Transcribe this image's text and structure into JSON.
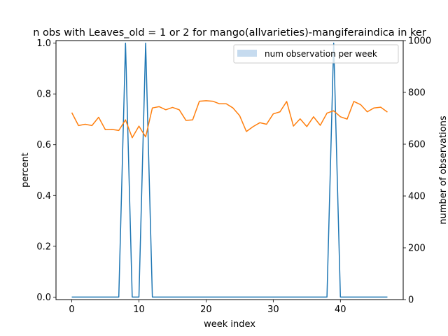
{
  "chart_data": {
    "type": "line",
    "title": "n obs with Leaves_old = 1 or 2 for mango(allvarieties)-mangiferaindica in ker",
    "xlabel": "week index",
    "ylabel": "percent",
    "ylabel_right": "number of observations",
    "xlim": [
      -2.35,
      49.35
    ],
    "ylim": [
      -0.01,
      1.01
    ],
    "ylim_right": [
      0,
      1000
    ],
    "x_ticks": [
      0,
      10,
      20,
      30,
      40
    ],
    "y_ticks": [
      0.0,
      0.2,
      0.4,
      0.6,
      0.8,
      1.0
    ],
    "y_tick_labels": [
      "0.0",
      "0.2",
      "0.4",
      "0.6",
      "0.8",
      "1.0"
    ],
    "y_right_ticks": [
      0,
      200,
      400,
      600,
      800,
      1000
    ],
    "legend": {
      "label": "num observation per week",
      "position": "upper-right",
      "swatch_color": "#c6dbef"
    },
    "grid": false,
    "series": [
      {
        "axis": "left",
        "color": "#1f77b4",
        "x": [
          0,
          1,
          2,
          3,
          4,
          5,
          6,
          7,
          8,
          9,
          10,
          11,
          12,
          13,
          14,
          15,
          16,
          17,
          18,
          19,
          20,
          21,
          22,
          23,
          24,
          25,
          26,
          27,
          28,
          29,
          30,
          31,
          32,
          33,
          34,
          35,
          36,
          37,
          38,
          39,
          40,
          41,
          42,
          43,
          44,
          45,
          46,
          47
        ],
        "values": [
          0,
          0,
          0,
          0,
          0,
          0,
          0,
          0,
          1,
          0,
          0,
          1,
          0,
          0,
          0,
          0,
          0,
          0,
          0,
          0,
          0,
          0,
          0,
          0,
          0,
          0,
          0,
          0,
          0,
          0,
          0,
          0,
          0,
          0,
          0,
          0,
          0,
          0,
          0,
          1,
          0,
          0,
          0,
          0,
          0,
          0,
          0,
          0
        ]
      },
      {
        "axis": "right",
        "color": "#ff7f0e",
        "x": [
          0,
          1,
          2,
          3,
          4,
          5,
          6,
          7,
          8,
          9,
          10,
          11,
          12,
          13,
          14,
          15,
          16,
          17,
          18,
          19,
          20,
          21,
          22,
          23,
          24,
          25,
          26,
          27,
          28,
          29,
          30,
          31,
          32,
          33,
          34,
          35,
          36,
          37,
          38,
          39,
          40,
          41,
          42,
          43,
          44,
          45,
          46,
          47
        ],
        "values": [
          722,
          672,
          677,
          672,
          704,
          656,
          657,
          653,
          694,
          625,
          670,
          628,
          740,
          745,
          733,
          742,
          733,
          692,
          694,
          766,
          768,
          766,
          756,
          756,
          740,
          710,
          649,
          668,
          683,
          677,
          717,
          725,
          765,
          670,
          698,
          668,
          706,
          673,
          720,
          729,
          706,
          697,
          765,
          753,
          725,
          740,
          743,
          724
        ]
      }
    ]
  }
}
